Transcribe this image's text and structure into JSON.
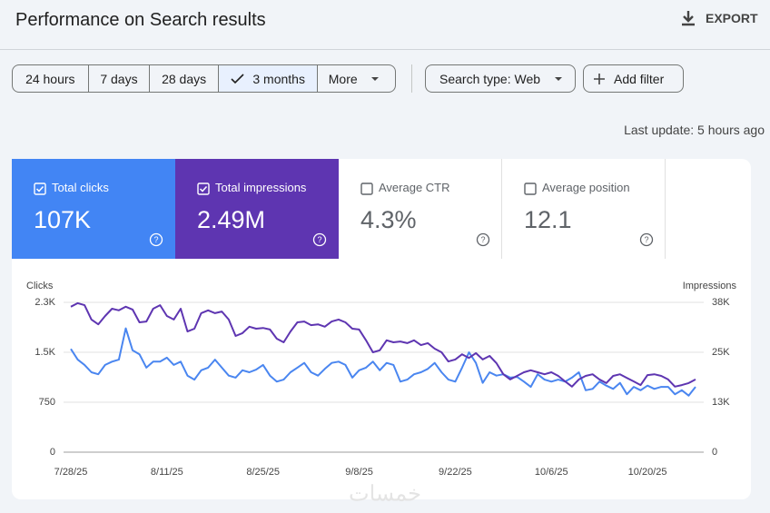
{
  "header": {
    "title": "Performance on Search results",
    "export": "EXPORT"
  },
  "filters": {
    "ranges": [
      "24 hours",
      "7 days",
      "28 days",
      "3 months",
      "More"
    ],
    "selected": 3,
    "search_type": "Search type: Web",
    "add_filter": "Add filter"
  },
  "last_update": "Last update: 5 hours ago",
  "metrics": [
    {
      "label": "Total clicks",
      "value": "107K",
      "checked": true,
      "color": "#4285f4"
    },
    {
      "label": "Total impressions",
      "value": "2.49M",
      "checked": true,
      "color": "#5e35b1"
    },
    {
      "label": "Average CTR",
      "value": "4.3%",
      "checked": false
    },
    {
      "label": "Average position",
      "value": "12.1",
      "checked": false
    }
  ],
  "chart_data": {
    "type": "line",
    "y_label": "Clicks",
    "y2_label": "Impressions",
    "categories": [
      "7/28/25",
      null,
      null,
      null,
      null,
      null,
      null,
      null,
      null,
      null,
      null,
      null,
      null,
      null,
      "8/11/25",
      null,
      null,
      null,
      null,
      null,
      null,
      null,
      null,
      null,
      null,
      null,
      null,
      null,
      "8/25/25",
      null,
      null,
      null,
      null,
      null,
      null,
      null,
      null,
      null,
      null,
      null,
      null,
      null,
      "9/8/25",
      null,
      null,
      null,
      null,
      null,
      null,
      null,
      null,
      null,
      null,
      null,
      null,
      null,
      "9/22/25",
      null,
      null,
      null,
      null,
      null,
      null,
      null,
      null,
      null,
      null,
      null,
      null,
      null,
      "10/6/25",
      null,
      null,
      null,
      null,
      null,
      null,
      null,
      null,
      null,
      null,
      null,
      null,
      null,
      "10/20/25",
      null,
      null,
      null,
      null,
      null,
      null,
      null
    ],
    "series": [
      {
        "name": "Total clicks",
        "color": "#4a86f0",
        "values": [
          1550,
          1390,
          1310,
          1200,
          1170,
          1310,
          1360,
          1390,
          1860,
          1530,
          1470,
          1270,
          1360,
          1360,
          1420,
          1310,
          1360,
          1150,
          1090,
          1230,
          1270,
          1390,
          1270,
          1150,
          1120,
          1230,
          1200,
          1240,
          1310,
          1150,
          1060,
          1090,
          1200,
          1270,
          1340,
          1200,
          1150,
          1250,
          1340,
          1360,
          1310,
          1120,
          1230,
          1270,
          1360,
          1230,
          1340,
          1310,
          1060,
          1090,
          1170,
          1200,
          1250,
          1340,
          1200,
          1090,
          1060,
          1270,
          1500,
          1340,
          1040,
          1200,
          1150,
          1170,
          1120,
          1130,
          1060,
          980,
          1170,
          1090,
          1060,
          1090,
          1060,
          1120,
          1200,
          930,
          950,
          1060,
          1000,
          950,
          1040,
          870,
          980,
          930,
          1000,
          950,
          980,
          980,
          870,
          930,
          850,
          980
        ]
      },
      {
        "name": "Total impressions",
        "color": "#5e35b1",
        "axis": "y2",
        "values": [
          36400,
          37300,
          36800,
          33200,
          32000,
          34100,
          35900,
          35500,
          36400,
          35700,
          32500,
          32700,
          35900,
          36800,
          34100,
          33200,
          35900,
          30200,
          30900,
          34800,
          35500,
          34800,
          35200,
          33200,
          29100,
          29800,
          31400,
          30900,
          31100,
          30700,
          28400,
          27500,
          30200,
          32500,
          32700,
          31800,
          32000,
          31400,
          32700,
          33200,
          32500,
          30900,
          30700,
          28000,
          25000,
          25500,
          28000,
          27500,
          27700,
          27300,
          28000,
          26800,
          27300,
          25900,
          25000,
          22700,
          23200,
          24500,
          23600,
          24800,
          23200,
          24100,
          22300,
          19500,
          18200,
          19100,
          20000,
          20500,
          20000,
          19500,
          20000,
          19100,
          17700,
          16400,
          18200,
          19100,
          19500,
          18200,
          17300,
          19100,
          19500,
          18600,
          17700,
          16800,
          19300,
          19500,
          19100,
          18200,
          16400,
          16800,
          17300,
          18200
        ]
      }
    ],
    "ylim": [
      0,
      2250
    ],
    "yticks": [
      0,
      750,
      {
        "value": 1500,
        "label": "1.5K"
      },
      {
        "value": 2250,
        "label": "2.3K"
      }
    ],
    "y2lim": [
      0,
      37500
    ],
    "y2ticks": [
      0,
      {
        "value": 12500,
        "label": "13K"
      },
      {
        "value": 25000,
        "label": "25K"
      },
      {
        "value": 37500,
        "label": "38K"
      }
    ],
    "grid": true
  },
  "watermark": "خمسات"
}
